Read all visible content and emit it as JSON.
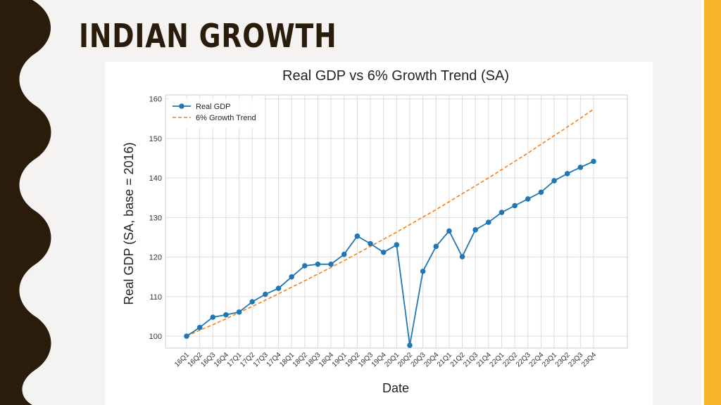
{
  "slide": {
    "title": "INDIAN GROWTH",
    "colors": {
      "dark": "#2a1c0a",
      "accent": "#f6b428",
      "background": "#f4f3f1"
    }
  },
  "chart_data": {
    "type": "line",
    "title": "Real GDP vs 6% Growth Trend (SA)",
    "xlabel": "Date",
    "ylabel": "Real GDP (SA, base = 2016)",
    "ylim": [
      97,
      161
    ],
    "yticks": [
      100,
      110,
      120,
      130,
      140,
      150,
      160
    ],
    "grid": true,
    "legend_position": "top-left",
    "categories": [
      "16Q1",
      "16Q2",
      "16Q3",
      "16Q4",
      "17Q1",
      "17Q2",
      "17Q3",
      "17Q4",
      "18Q1",
      "18Q2",
      "18Q3",
      "18Q4",
      "19Q1",
      "19Q2",
      "19Q3",
      "19Q4",
      "20Q1",
      "20Q2",
      "20Q3",
      "20Q4",
      "21Q1",
      "21Q2",
      "21Q3",
      "21Q4",
      "22Q1",
      "22Q2",
      "22Q3",
      "22Q4",
      "23Q1",
      "23Q2",
      "23Q3",
      "23Q4"
    ],
    "series": [
      {
        "name": "Real GDP",
        "color": "#1f77b4",
        "style": "solid-marker",
        "values": [
          100.0,
          102.2,
          104.8,
          105.4,
          106.1,
          108.7,
          110.6,
          112.1,
          115.0,
          117.8,
          118.2,
          118.2,
          120.7,
          125.3,
          123.4,
          121.2,
          123.1,
          97.7,
          116.4,
          122.7,
          126.6,
          120.1,
          126.9,
          128.8,
          131.3,
          133.0,
          134.7,
          136.4,
          139.3,
          141.1,
          142.7,
          144.2
        ]
      },
      {
        "name": "6% Growth Trend",
        "color": "#ff7f0e",
        "style": "dashed",
        "values": [
          100.0,
          101.5,
          102.9,
          104.4,
          106.0,
          107.5,
          109.1,
          110.7,
          112.4,
          114.0,
          115.7,
          117.4,
          119.1,
          120.9,
          122.7,
          124.5,
          126.3,
          128.2,
          130.1,
          132.0,
          134.0,
          136.0,
          138.0,
          140.0,
          142.1,
          144.2,
          146.3,
          148.5,
          150.7,
          152.9,
          155.1,
          157.4
        ]
      }
    ]
  }
}
